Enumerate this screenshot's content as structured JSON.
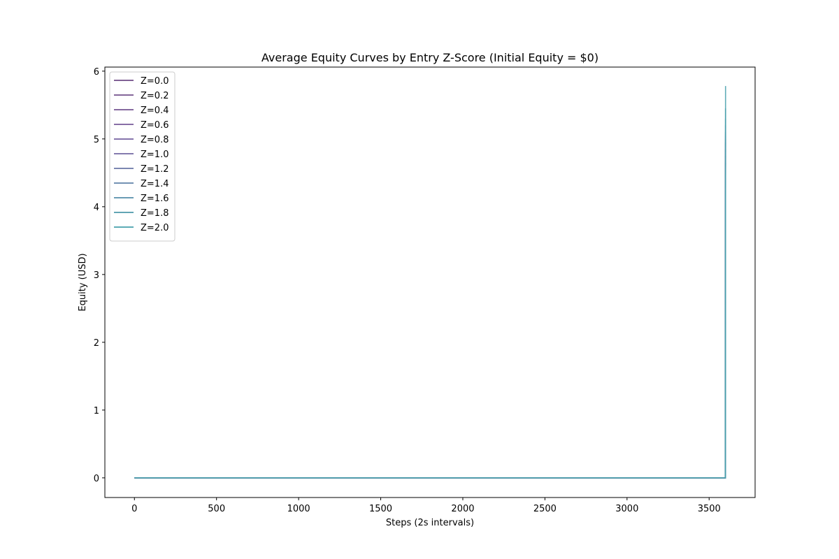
{
  "chart_data": {
    "type": "line",
    "title": "Average Equity Curves by Entry Z-Score (Initial Equity = $0)",
    "xlabel": "Steps (2s intervals)",
    "ylabel": "Equity (USD)",
    "xlim": [
      -180,
      3780
    ],
    "ylim": [
      -0.29,
      6.06
    ],
    "xticks": [
      0,
      500,
      1000,
      1500,
      2000,
      2500,
      3000,
      3500
    ],
    "yticks": [
      0,
      1,
      2,
      3,
      4,
      5,
      6
    ],
    "grid": false,
    "legend_position": "top-left",
    "series": [
      {
        "name": "Z=0.0",
        "color": "#6f4b87",
        "x": [
          0,
          3598,
          3599,
          3600
        ],
        "y": [
          0,
          0,
          0,
          4.65
        ]
      },
      {
        "name": "Z=0.2",
        "color": "#72508c",
        "x": [
          0,
          3598,
          3599,
          3600
        ],
        "y": [
          0,
          0,
          0,
          4.75
        ]
      },
      {
        "name": "Z=0.4",
        "color": "#745493",
        "x": [
          0,
          3598,
          3599,
          3600
        ],
        "y": [
          0,
          0,
          0,
          4.85
        ]
      },
      {
        "name": "Z=0.6",
        "color": "#77599a",
        "x": [
          0,
          3598,
          3599,
          3600
        ],
        "y": [
          0,
          0,
          0,
          4.95
        ]
      },
      {
        "name": "Z=0.8",
        "color": "#7560a0",
        "x": [
          0,
          3598,
          3599,
          3600
        ],
        "y": [
          0,
          0,
          0,
          5.0
        ]
      },
      {
        "name": "Z=1.0",
        "color": "#7368a3",
        "x": [
          0,
          3598,
          3599,
          3600
        ],
        "y": [
          0,
          0,
          0,
          5.05
        ]
      },
      {
        "name": "Z=1.2",
        "color": "#6a76a6",
        "x": [
          0,
          3598,
          3599,
          3600
        ],
        "y": [
          0,
          0,
          0,
          5.1
        ]
      },
      {
        "name": "Z=1.4",
        "color": "#5f82a8",
        "x": [
          0,
          3598,
          3599,
          3600
        ],
        "y": [
          0,
          0,
          0,
          5.2
        ]
      },
      {
        "name": "Z=1.6",
        "color": "#548ea9",
        "x": [
          0,
          3598,
          3599,
          3600
        ],
        "y": [
          0,
          0,
          0,
          5.3
        ]
      },
      {
        "name": "Z=1.8",
        "color": "#4b98aa",
        "x": [
          0,
          3598,
          3599,
          3600
        ],
        "y": [
          0,
          0,
          0,
          5.45
        ]
      },
      {
        "name": "Z=2.0",
        "color": "#46a0ab",
        "x": [
          0,
          3598,
          3599,
          3600
        ],
        "y": [
          0,
          0,
          0,
          5.78
        ]
      }
    ]
  }
}
